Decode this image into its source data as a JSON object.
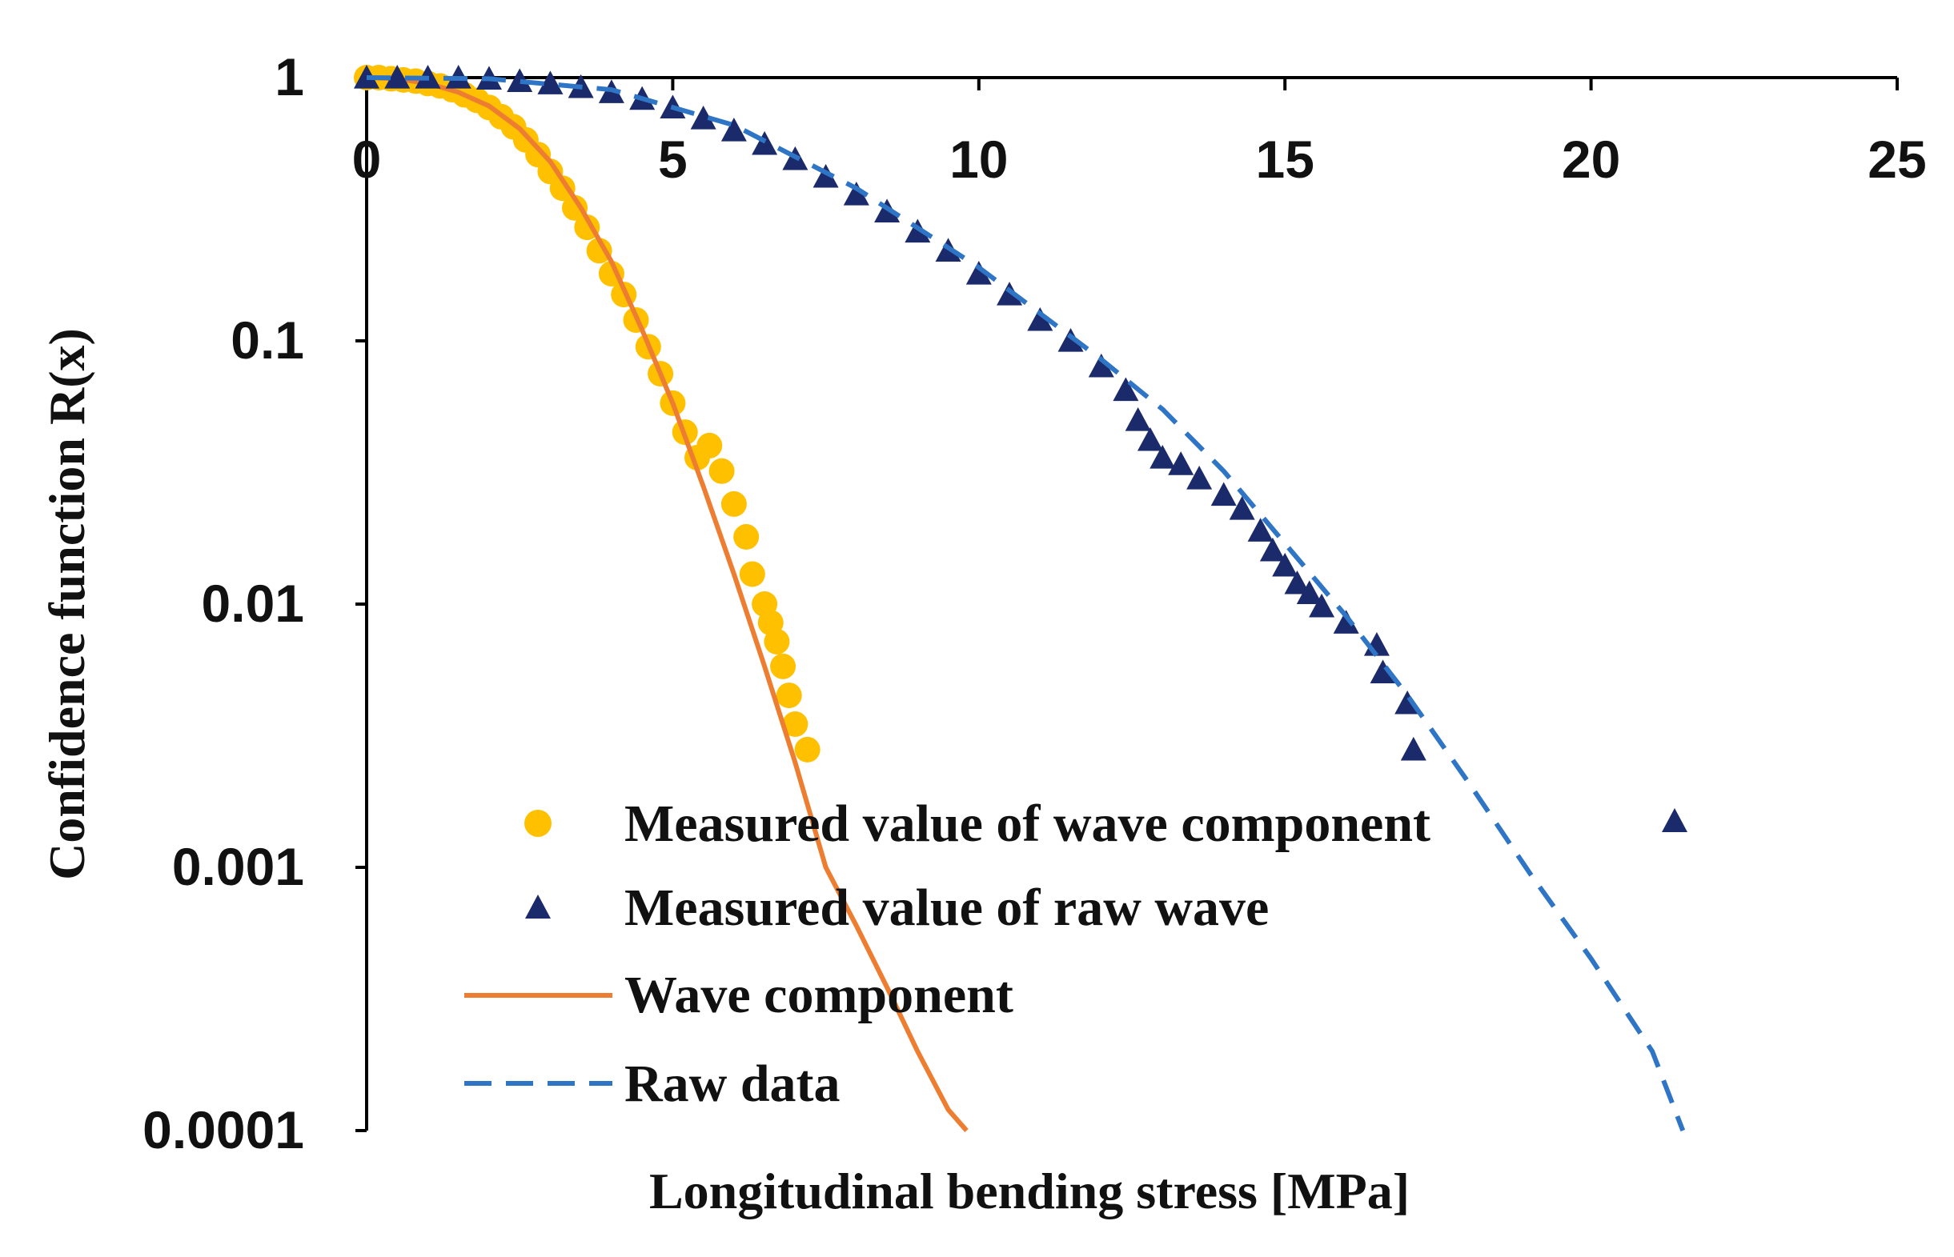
{
  "chart_data": {
    "type": "scatter",
    "title": "",
    "xlabel": "Longitudinal bending stress [MPa]",
    "ylabel": "Confidence function R(x)",
    "xlim": [
      0,
      25
    ],
    "ylim": [
      0.0001,
      1
    ],
    "yscale": "log",
    "grid": false,
    "legend_position": "bottom-center",
    "x_ticks": [
      "0",
      "5",
      "10",
      "15",
      "20",
      "25"
    ],
    "y_ticks": [
      "1",
      "0.1",
      "0.01",
      "0.001",
      "0.0001"
    ],
    "colors": {
      "wave_points": "#FFC000",
      "raw_points": "#1B2A6B",
      "wave_line": "#ED7D31",
      "raw_line": "#2E75C6",
      "axis": "#000000"
    },
    "series": [
      {
        "name": "Measured value of wave component",
        "kind": "scatter",
        "marker": "circle",
        "points": [
          [
            0,
            1
          ],
          [
            0.2,
            1
          ],
          [
            0.4,
            0.99
          ],
          [
            0.6,
            0.98
          ],
          [
            0.8,
            0.97
          ],
          [
            1.0,
            0.95
          ],
          [
            1.2,
            0.93
          ],
          [
            1.4,
            0.9
          ],
          [
            1.6,
            0.86
          ],
          [
            1.8,
            0.82
          ],
          [
            2.0,
            0.77
          ],
          [
            2.2,
            0.71
          ],
          [
            2.4,
            0.65
          ],
          [
            2.6,
            0.58
          ],
          [
            2.8,
            0.51
          ],
          [
            3.0,
            0.44
          ],
          [
            3.2,
            0.38
          ],
          [
            3.4,
            0.32
          ],
          [
            3.6,
            0.27
          ],
          [
            3.8,
            0.22
          ],
          [
            4.0,
            0.18
          ],
          [
            4.2,
            0.15
          ],
          [
            4.4,
            0.12
          ],
          [
            4.6,
            0.095
          ],
          [
            4.8,
            0.075
          ],
          [
            5.0,
            0.058
          ],
          [
            5.2,
            0.045
          ],
          [
            5.4,
            0.036
          ],
          [
            5.6,
            0.04
          ],
          [
            5.8,
            0.032
          ],
          [
            6.0,
            0.024
          ],
          [
            6.2,
            0.018
          ],
          [
            6.3,
            0.013
          ],
          [
            6.5,
            0.01
          ],
          [
            6.6,
            0.0085
          ],
          [
            6.7,
            0.0072
          ],
          [
            6.8,
            0.0058
          ],
          [
            6.9,
            0.0045
          ],
          [
            7.0,
            0.0035
          ],
          [
            7.2,
            0.0028
          ]
        ]
      },
      {
        "name": "Measured value of raw wave",
        "kind": "scatter",
        "marker": "triangle",
        "points": [
          [
            0,
            1
          ],
          [
            0.5,
            1
          ],
          [
            1.0,
            1
          ],
          [
            1.5,
            1
          ],
          [
            2.0,
            0.99
          ],
          [
            2.5,
            0.97
          ],
          [
            3.0,
            0.95
          ],
          [
            3.5,
            0.92
          ],
          [
            4.0,
            0.88
          ],
          [
            4.5,
            0.83
          ],
          [
            5.0,
            0.77
          ],
          [
            5.5,
            0.7
          ],
          [
            6.0,
            0.63
          ],
          [
            6.5,
            0.56
          ],
          [
            7.0,
            0.49
          ],
          [
            7.5,
            0.42
          ],
          [
            8.0,
            0.36
          ],
          [
            8.5,
            0.31
          ],
          [
            9.0,
            0.26
          ],
          [
            9.5,
            0.22
          ],
          [
            10.0,
            0.18
          ],
          [
            10.5,
            0.15
          ],
          [
            11.0,
            0.12
          ],
          [
            11.5,
            0.1
          ],
          [
            12.0,
            0.08
          ],
          [
            12.4,
            0.065
          ],
          [
            12.6,
            0.05
          ],
          [
            12.8,
            0.042
          ],
          [
            13.0,
            0.036
          ],
          [
            13.3,
            0.034
          ],
          [
            13.6,
            0.03
          ],
          [
            14.0,
            0.026
          ],
          [
            14.3,
            0.023
          ],
          [
            14.6,
            0.019
          ],
          [
            14.8,
            0.016
          ],
          [
            15.0,
            0.014
          ],
          [
            15.2,
            0.012
          ],
          [
            15.4,
            0.011
          ],
          [
            15.6,
            0.0098
          ],
          [
            16.0,
            0.0085
          ],
          [
            16.5,
            0.007
          ],
          [
            16.6,
            0.0055
          ],
          [
            17.0,
            0.0042
          ],
          [
            17.1,
            0.0028
          ]
        ]
      },
      {
        "name": "Wave component",
        "kind": "line",
        "style": "solid",
        "points": [
          [
            0,
            1
          ],
          [
            0.5,
            0.99
          ],
          [
            1.0,
            0.95
          ],
          [
            1.5,
            0.88
          ],
          [
            2.0,
            0.78
          ],
          [
            2.5,
            0.64
          ],
          [
            3.0,
            0.48
          ],
          [
            3.5,
            0.32
          ],
          [
            4.0,
            0.2
          ],
          [
            4.5,
            0.11
          ],
          [
            5.0,
            0.058
          ],
          [
            5.5,
            0.028
          ],
          [
            6.0,
            0.013
          ],
          [
            6.5,
            0.0058
          ],
          [
            7.0,
            0.0025
          ],
          [
            7.5,
            0.001
          ],
          [
            8.0,
            0.0006
          ],
          [
            8.5,
            0.00035
          ],
          [
            9.0,
            0.0002
          ],
          [
            9.5,
            0.00012
          ],
          [
            9.8,
            0.0001
          ]
        ]
      },
      {
        "name": "Raw data",
        "kind": "line",
        "style": "dashed",
        "points": [
          [
            0,
            1
          ],
          [
            2.0,
            0.99
          ],
          [
            4.0,
            0.9
          ],
          [
            6.0,
            0.66
          ],
          [
            8.0,
            0.38
          ],
          [
            10.0,
            0.19
          ],
          [
            12.0,
            0.085
          ],
          [
            13.0,
            0.055
          ],
          [
            14.0,
            0.032
          ],
          [
            15.0,
            0.017
          ],
          [
            16.0,
            0.009
          ],
          [
            17.0,
            0.0045
          ],
          [
            18.0,
            0.0021
          ],
          [
            19.0,
            0.00095
          ],
          [
            20.0,
            0.00045
          ],
          [
            21.0,
            0.0002
          ],
          [
            21.5,
            0.0001
          ]
        ]
      }
    ],
    "legend_extra_marker": "triangle"
  }
}
